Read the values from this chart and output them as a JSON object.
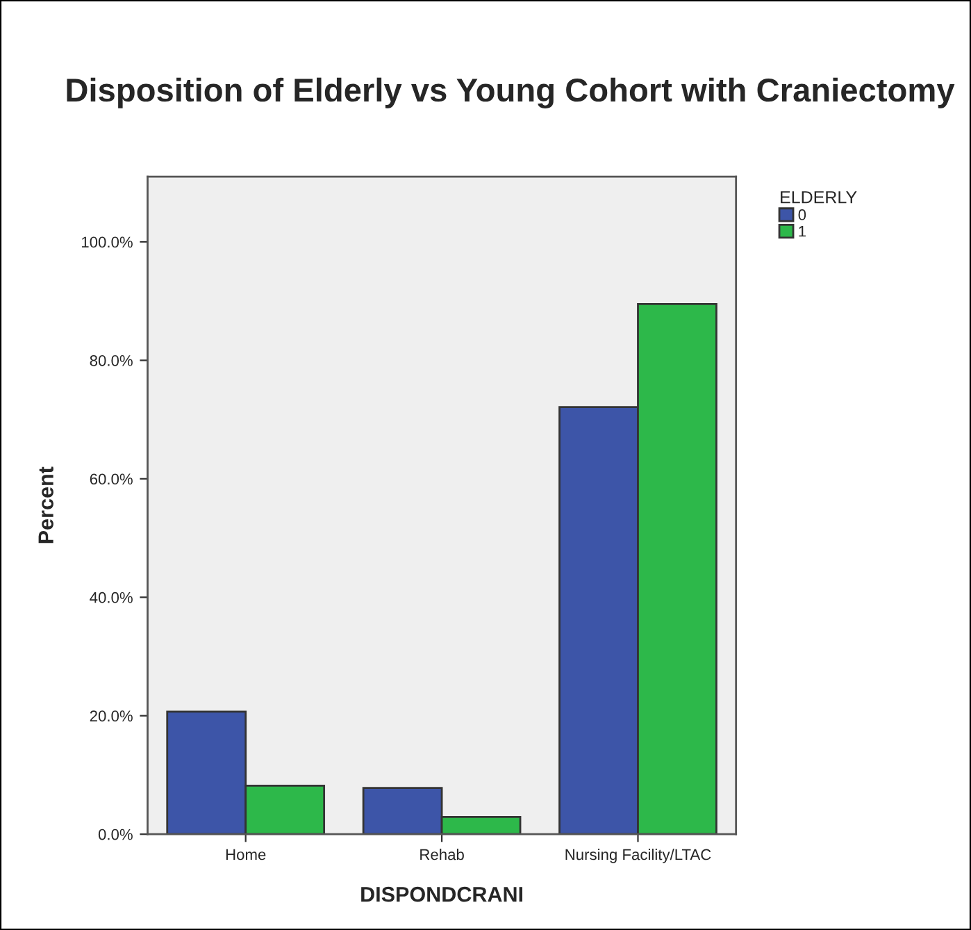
{
  "chart_data": {
    "type": "bar",
    "title": "Disposition of Elderly vs Young Cohort with Craniectomy",
    "xlabel": "DISPONDCRANI",
    "ylabel": "Percent",
    "legend_title": "ELDERLY",
    "categories": [
      "Home",
      "Rehab",
      "Nursing Facility/LTAC"
    ],
    "series": [
      {
        "name": "0",
        "color": "#3d55a8",
        "values": [
          20.7,
          7.8,
          72.1
        ]
      },
      {
        "name": "1",
        "color": "#2db84a",
        "values": [
          8.2,
          2.9,
          89.5
        ]
      }
    ],
    "ylim": [
      0,
      111
    ],
    "yticks": [
      {
        "value": 0,
        "label": "0.0%"
      },
      {
        "value": 20,
        "label": "20.0%"
      },
      {
        "value": 40,
        "label": "40.0%"
      },
      {
        "value": 60,
        "label": "60.0%"
      },
      {
        "value": 80,
        "label": "80.0%"
      },
      {
        "value": 100,
        "label": "100.0%"
      }
    ],
    "grid": false,
    "legend": "top right"
  }
}
